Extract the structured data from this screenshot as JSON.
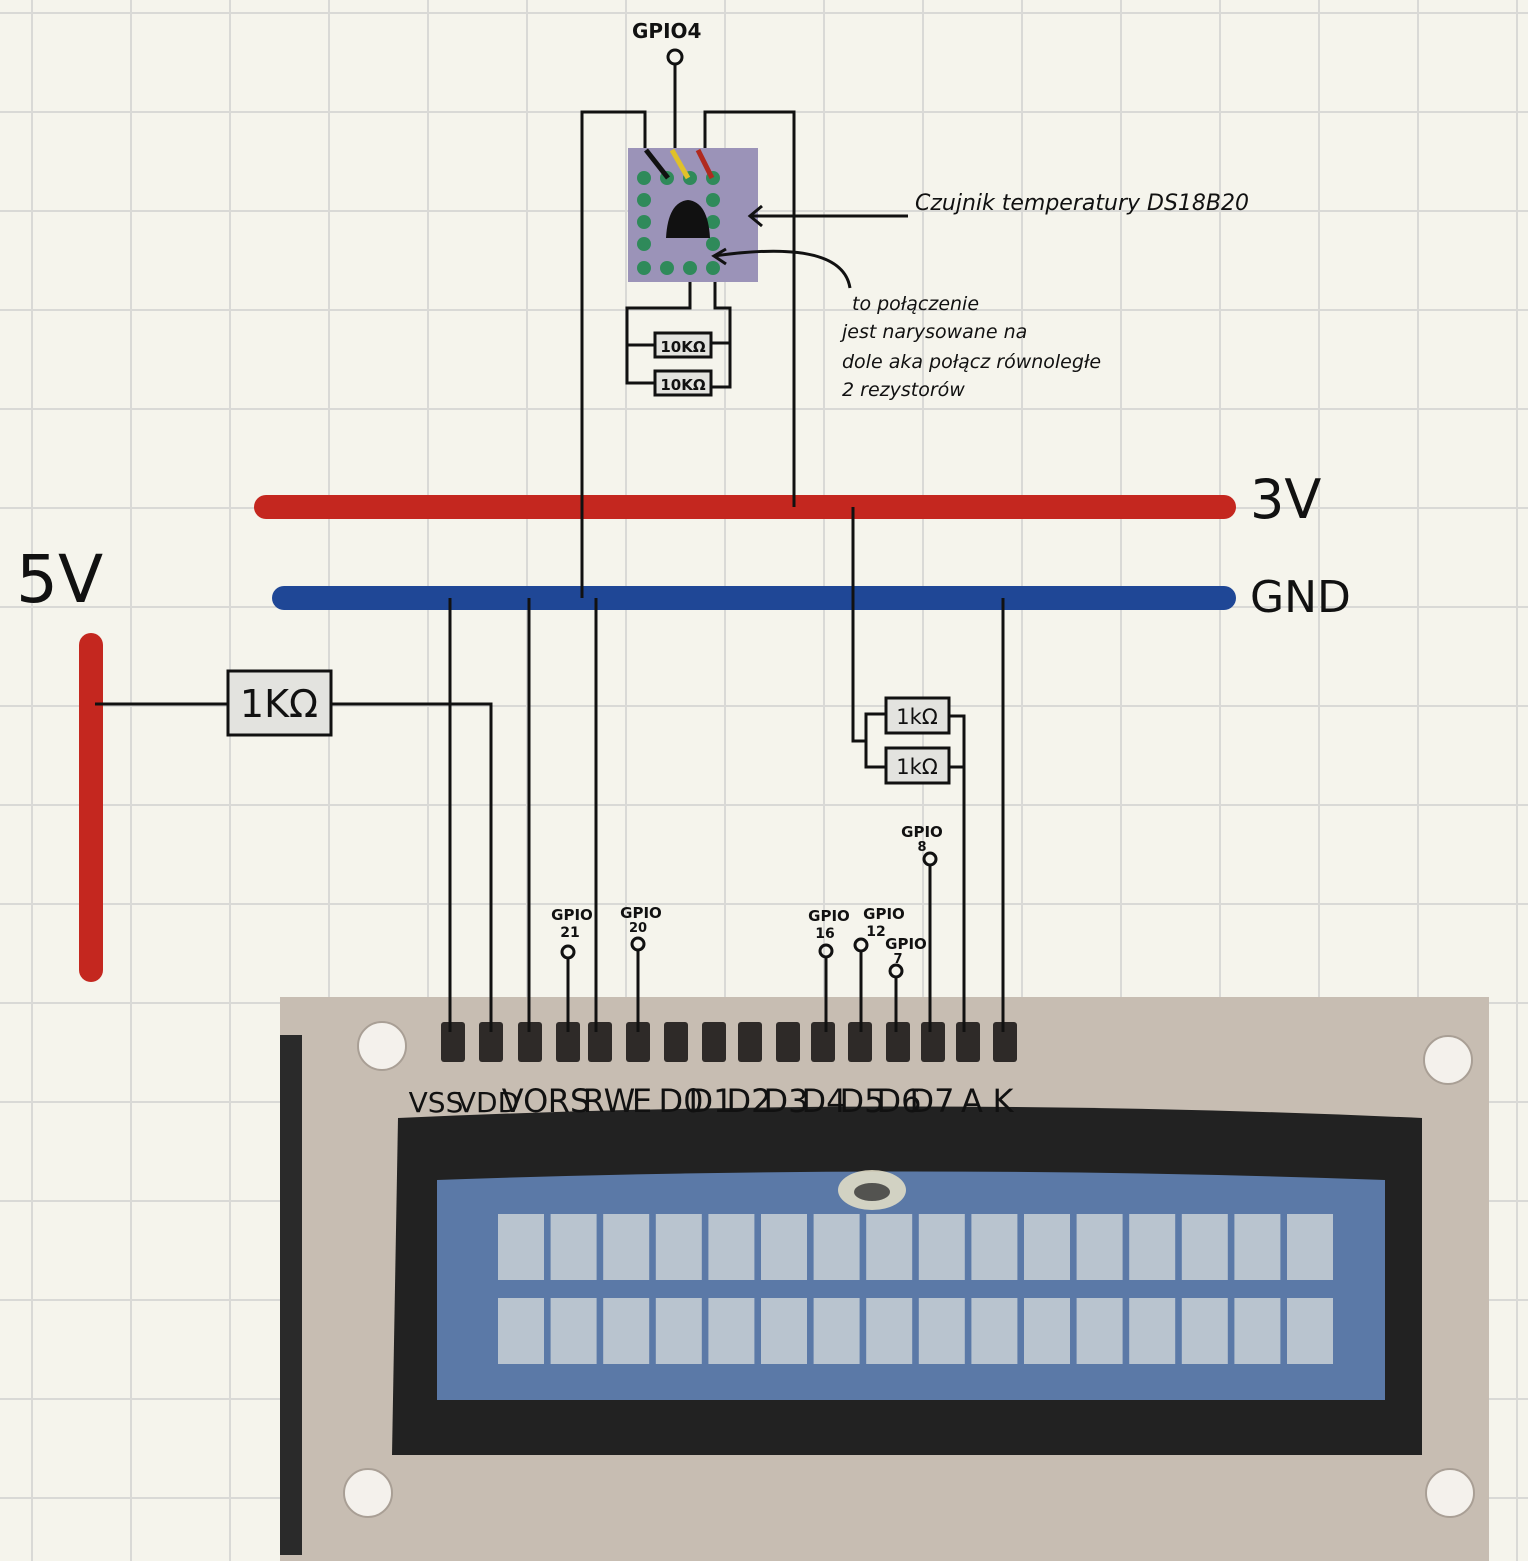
{
  "rails": {
    "v5_label": "5V",
    "v3_label": "3V",
    "gnd_label": "GND",
    "colors": {
      "v5": "#c4271f",
      "v3": "#c4271f",
      "gnd": "#1f4796"
    }
  },
  "sensor": {
    "gpio_label": "GPIO4",
    "caption": "Czujnik temperatury DS18B20",
    "resistor_top": "10KΩ",
    "resistor_bottom": "10KΩ",
    "note_line1": "to połączenie",
    "note_line2": "jest narysowane na",
    "note_line3": "dole aka połącz równoległe",
    "note_line4": "2 rezystorów"
  },
  "contrast_resistor": {
    "label": "1KΩ"
  },
  "backlight_resistors": {
    "top": "1kΩ",
    "bottom": "1kΩ"
  },
  "lcd": {
    "pins": [
      "VSS",
      "VDD",
      "VO",
      "RS",
      "RW",
      "E",
      "D0",
      "D1",
      "D2",
      "D3",
      "D4",
      "D5",
      "D6",
      "D7",
      "A",
      "K"
    ],
    "gpio": {
      "rs": {
        "line1": "GPIO",
        "line2": "21"
      },
      "e": {
        "line1": "GPIO",
        "line2": "20"
      },
      "d4": {
        "line1": "GPIO",
        "line2": "16"
      },
      "d5": {
        "line1": "GPIO",
        "line2": "12"
      },
      "d6": {
        "line1": "GPIO",
        "line2": "7"
      },
      "d7": {
        "line1": "GPIO",
        "line2": "8"
      }
    },
    "rows": 2,
    "columns": 16
  }
}
